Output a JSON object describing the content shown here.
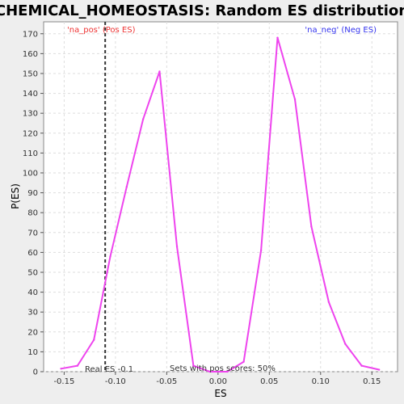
{
  "chart_data": {
    "type": "line",
    "title": "CHEMICAL_HOMEOSTASIS: Random ES distribution",
    "xlabel": "ES",
    "ylabel": "P(ES)",
    "xlim": [
      -0.17,
      0.175
    ],
    "ylim": [
      0,
      176
    ],
    "x_ticks": [
      -0.15,
      -0.1,
      -0.05,
      0.0,
      0.05,
      0.1,
      0.15
    ],
    "x_tick_labels": [
      "-0.15",
      "-0.10",
      "-0.05",
      "0.00",
      "0.05",
      "0.10",
      "0.15"
    ],
    "y_ticks": [
      0,
      10,
      20,
      30,
      40,
      50,
      60,
      70,
      80,
      90,
      100,
      110,
      120,
      130,
      140,
      150,
      160,
      170
    ],
    "grid": true,
    "line_color": "#ee44ee",
    "series": [
      {
        "x": [
          -0.153,
          -0.137,
          -0.121,
          -0.105,
          -0.089,
          -0.073,
          -0.057,
          -0.04,
          -0.024,
          -0.008,
          0.009,
          0.025,
          0.042,
          0.058,
          0.075,
          0.091,
          0.108,
          0.124,
          0.14,
          0.157
        ],
        "values": [
          1.5,
          3,
          16,
          58,
          93,
          127,
          151,
          63,
          3,
          0,
          0,
          5,
          61,
          168,
          137,
          73,
          35,
          14,
          3,
          1
        ]
      }
    ],
    "real_es": -0.11,
    "annotations": {
      "pos_label": "'na_pos' (Pos ES)",
      "neg_label": "'na_neg' (Neg ES)",
      "real_es_label": "Real ES -0.1",
      "sets_label": "Sets with pos scores: 50%",
      "pos_color": "#ee3333",
      "neg_color": "#3333ee"
    }
  }
}
